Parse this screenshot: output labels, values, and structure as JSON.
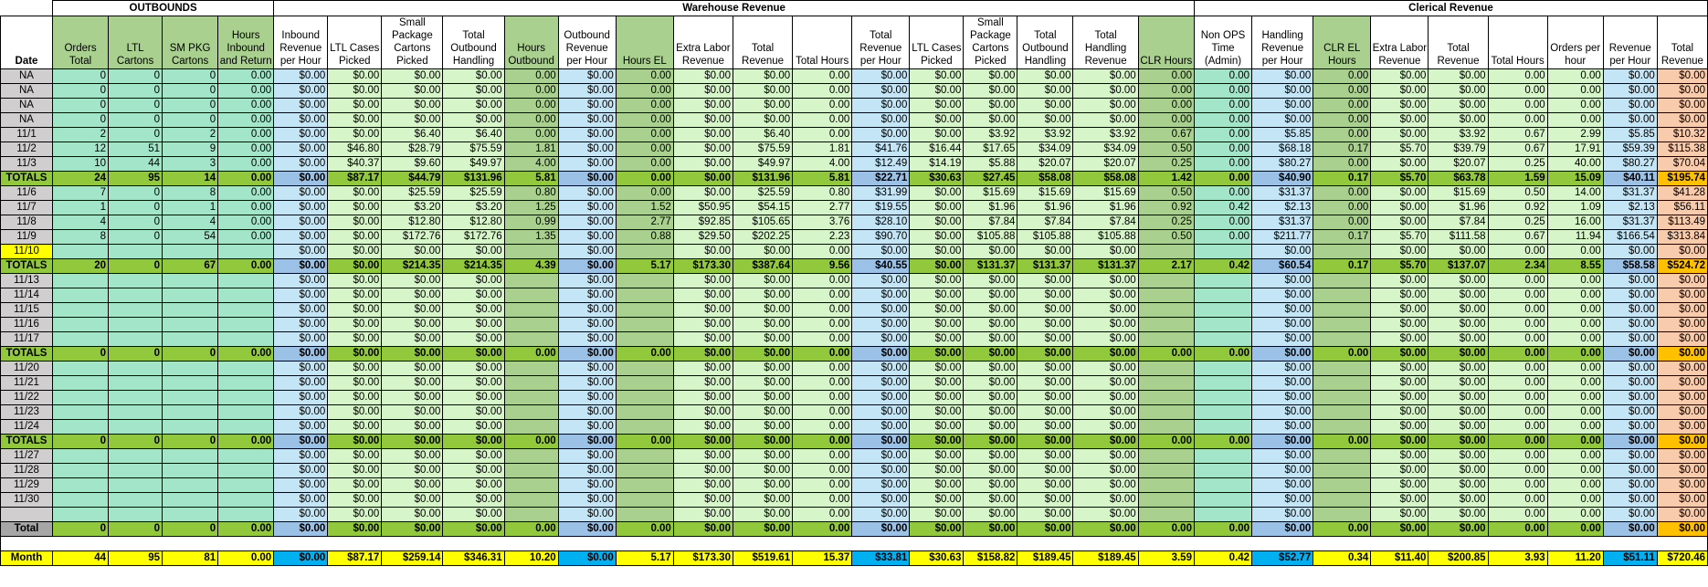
{
  "sections": {
    "outbounds": "OUTBOUNDS",
    "warehouse": "Warehouse Revenue",
    "clerical": "Clerical Revenue"
  },
  "columns": [
    "Date",
    "Orders Total",
    "LTL Cartons",
    "SM PKG Cartons",
    "Hours Inbound and Return",
    "Inbound Revenue per Hour",
    "LTL Cases Picked",
    "Small Package Cartons Picked",
    "Total Outbound Handling",
    "Hours Outbound",
    "Outbound Revenue per Hour",
    "Hours EL",
    "Extra Labor Revenue",
    "Total Revenue",
    "Total Hours",
    "Total Revenue per Hour",
    "LTL Cases Picked",
    "Small Package Cartons Picked",
    "Total Outbound Handling",
    "Total Handling Revenue",
    "CLR Hours",
    "Non OPS Time (Admin)",
    "Handling Revenue per Hour",
    "CLR EL Hours",
    "Extra Labor Revenue",
    "Total Revenue",
    "Total Hours",
    "Orders per hour",
    "Revenue per Hour",
    "Total Revenue"
  ],
  "rows": [
    {
      "type": "data",
      "cells": [
        "NA",
        "0",
        "0",
        "0",
        "0.00",
        "$0.00",
        "$0.00",
        "$0.00",
        "$0.00",
        "0.00",
        "$0.00",
        "0.00",
        "$0.00",
        "$0.00",
        "0.00",
        "$0.00",
        "$0.00",
        "$0.00",
        "$0.00",
        "$0.00",
        "0.00",
        "0.00",
        "$0.00",
        "0.00",
        "$0.00",
        "$0.00",
        "0.00",
        "0.00",
        "$0.00",
        "$0.00"
      ]
    },
    {
      "type": "data",
      "cells": [
        "NA",
        "0",
        "0",
        "0",
        "0.00",
        "$0.00",
        "$0.00",
        "$0.00",
        "$0.00",
        "0.00",
        "$0.00",
        "0.00",
        "$0.00",
        "$0.00",
        "0.00",
        "$0.00",
        "$0.00",
        "$0.00",
        "$0.00",
        "$0.00",
        "0.00",
        "0.00",
        "$0.00",
        "0.00",
        "$0.00",
        "$0.00",
        "0.00",
        "0.00",
        "$0.00",
        "$0.00"
      ]
    },
    {
      "type": "data",
      "cells": [
        "NA",
        "0",
        "0",
        "0",
        "0.00",
        "$0.00",
        "$0.00",
        "$0.00",
        "$0.00",
        "0.00",
        "$0.00",
        "0.00",
        "$0.00",
        "$0.00",
        "0.00",
        "$0.00",
        "$0.00",
        "$0.00",
        "$0.00",
        "$0.00",
        "0.00",
        "0.00",
        "$0.00",
        "0.00",
        "$0.00",
        "$0.00",
        "0.00",
        "0.00",
        "$0.00",
        "$0.00"
      ]
    },
    {
      "type": "data",
      "cells": [
        "NA",
        "0",
        "0",
        "0",
        "0.00",
        "$0.00",
        "$0.00",
        "$0.00",
        "$0.00",
        "0.00",
        "$0.00",
        "0.00",
        "$0.00",
        "$0.00",
        "0.00",
        "$0.00",
        "$0.00",
        "$0.00",
        "$0.00",
        "$0.00",
        "0.00",
        "0.00",
        "$0.00",
        "0.00",
        "$0.00",
        "$0.00",
        "0.00",
        "0.00",
        "$0.00",
        "$0.00"
      ]
    },
    {
      "type": "data",
      "cells": [
        "11/1",
        "2",
        "0",
        "2",
        "0.00",
        "$0.00",
        "$0.00",
        "$6.40",
        "$6.40",
        "0.00",
        "$0.00",
        "0.00",
        "$0.00",
        "$6.40",
        "0.00",
        "$0.00",
        "$0.00",
        "$3.92",
        "$3.92",
        "$3.92",
        "0.67",
        "0.00",
        "$5.85",
        "0.00",
        "$0.00",
        "$3.92",
        "0.67",
        "2.99",
        "$5.85",
        "$10.32"
      ]
    },
    {
      "type": "data",
      "cells": [
        "11/2",
        "12",
        "51",
        "9",
        "0.00",
        "$0.00",
        "$46.80",
        "$28.79",
        "$75.59",
        "1.81",
        "$0.00",
        "0.00",
        "$0.00",
        "$75.59",
        "1.81",
        "$41.76",
        "$16.44",
        "$17.65",
        "$34.09",
        "$34.09",
        "0.50",
        "0.00",
        "$68.18",
        "0.17",
        "$5.70",
        "$39.79",
        "0.67",
        "17.91",
        "$59.39",
        "$115.38"
      ]
    },
    {
      "type": "data",
      "cells": [
        "11/3",
        "10",
        "44",
        "3",
        "0.00",
        "$0.00",
        "$40.37",
        "$9.60",
        "$49.97",
        "4.00",
        "$0.00",
        "0.00",
        "$0.00",
        "$49.97",
        "4.00",
        "$12.49",
        "$14.19",
        "$5.88",
        "$20.07",
        "$20.07",
        "0.25",
        "0.00",
        "$80.27",
        "0.00",
        "$0.00",
        "$20.07",
        "0.25",
        "40.00",
        "$80.27",
        "$70.04"
      ]
    },
    {
      "type": "totals",
      "cells": [
        "TOTALS",
        "24",
        "95",
        "14",
        "0.00",
        "$0.00",
        "$87.17",
        "$44.79",
        "$131.96",
        "5.81",
        "$0.00",
        "0.00",
        "$0.00",
        "$131.96",
        "5.81",
        "$22.71",
        "$30.63",
        "$27.45",
        "$58.08",
        "$58.08",
        "1.42",
        "0.00",
        "$40.90",
        "0.17",
        "$5.70",
        "$63.78",
        "1.59",
        "15.09",
        "$40.11",
        "$195.74"
      ]
    },
    {
      "type": "data",
      "cells": [
        "11/6",
        "7",
        "0",
        "8",
        "0.00",
        "$0.00",
        "$0.00",
        "$25.59",
        "$25.59",
        "0.80",
        "$0.00",
        "0.00",
        "$0.00",
        "$25.59",
        "0.80",
        "$31.99",
        "$0.00",
        "$15.69",
        "$15.69",
        "$15.69",
        "0.50",
        "0.00",
        "$31.37",
        "0.00",
        "$0.00",
        "$15.69",
        "0.50",
        "14.00",
        "$31.37",
        "$41.28"
      ]
    },
    {
      "type": "data",
      "cells": [
        "11/7",
        "1",
        "0",
        "1",
        "0.00",
        "$0.00",
        "$0.00",
        "$3.20",
        "$3.20",
        "1.25",
        "$0.00",
        "1.52",
        "$50.95",
        "$54.15",
        "2.77",
        "$19.55",
        "$0.00",
        "$1.96",
        "$1.96",
        "$1.96",
        "0.92",
        "0.42",
        "$2.13",
        "0.00",
        "$0.00",
        "$1.96",
        "0.92",
        "1.09",
        "$2.13",
        "$56.11"
      ]
    },
    {
      "type": "data",
      "cells": [
        "11/8",
        "4",
        "0",
        "4",
        "0.00",
        "$0.00",
        "$0.00",
        "$12.80",
        "$12.80",
        "0.99",
        "$0.00",
        "2.77",
        "$92.85",
        "$105.65",
        "3.76",
        "$28.10",
        "$0.00",
        "$7.84",
        "$7.84",
        "$7.84",
        "0.25",
        "0.00",
        "$31.37",
        "0.00",
        "$0.00",
        "$7.84",
        "0.25",
        "16.00",
        "$31.37",
        "$113.49"
      ]
    },
    {
      "type": "data",
      "cells": [
        "11/9",
        "8",
        "0",
        "54",
        "0.00",
        "$0.00",
        "$0.00",
        "$172.76",
        "$172.76",
        "1.35",
        "$0.00",
        "0.88",
        "$29.50",
        "$202.25",
        "2.23",
        "$90.70",
        "$0.00",
        "$105.88",
        "$105.88",
        "$105.88",
        "0.50",
        "0.00",
        "$211.77",
        "0.17",
        "$5.70",
        "$111.58",
        "0.67",
        "11.94",
        "$166.54",
        "$313.84"
      ]
    },
    {
      "type": "data",
      "hl": true,
      "cells": [
        "11/10",
        "",
        "",
        "",
        "",
        "$0.00",
        "$0.00",
        "$0.00",
        "$0.00",
        "",
        "$0.00",
        "",
        "$0.00",
        "$0.00",
        "0.00",
        "$0.00",
        "$0.00",
        "$0.00",
        "$0.00",
        "$0.00",
        "",
        "",
        "$0.00",
        "",
        "$0.00",
        "$0.00",
        "0.00",
        "0.00",
        "$0.00",
        "$0.00"
      ]
    },
    {
      "type": "totals",
      "cells": [
        "TOTALS",
        "20",
        "0",
        "67",
        "0.00",
        "$0.00",
        "$0.00",
        "$214.35",
        "$214.35",
        "4.39",
        "$0.00",
        "5.17",
        "$173.30",
        "$387.64",
        "9.56",
        "$40.55",
        "$0.00",
        "$131.37",
        "$131.37",
        "$131.37",
        "2.17",
        "0.42",
        "$60.54",
        "0.17",
        "$5.70",
        "$137.07",
        "2.34",
        "8.55",
        "$58.58",
        "$524.72"
      ]
    },
    {
      "type": "data",
      "cells": [
        "11/13",
        "",
        "",
        "",
        "",
        "$0.00",
        "$0.00",
        "$0.00",
        "$0.00",
        "",
        "$0.00",
        "",
        "$0.00",
        "$0.00",
        "0.00",
        "$0.00",
        "$0.00",
        "$0.00",
        "$0.00",
        "$0.00",
        "",
        "",
        "$0.00",
        "",
        "$0.00",
        "$0.00",
        "0.00",
        "0.00",
        "$0.00",
        "$0.00"
      ]
    },
    {
      "type": "data",
      "cells": [
        "11/14",
        "",
        "",
        "",
        "",
        "$0.00",
        "$0.00",
        "$0.00",
        "$0.00",
        "",
        "$0.00",
        "",
        "$0.00",
        "$0.00",
        "0.00",
        "$0.00",
        "$0.00",
        "$0.00",
        "$0.00",
        "$0.00",
        "",
        "",
        "$0.00",
        "",
        "$0.00",
        "$0.00",
        "0.00",
        "0.00",
        "$0.00",
        "$0.00"
      ]
    },
    {
      "type": "data",
      "cells": [
        "11/15",
        "",
        "",
        "",
        "",
        "$0.00",
        "$0.00",
        "$0.00",
        "$0.00",
        "",
        "$0.00",
        "",
        "$0.00",
        "$0.00",
        "0.00",
        "$0.00",
        "$0.00",
        "$0.00",
        "$0.00",
        "$0.00",
        "",
        "",
        "$0.00",
        "",
        "$0.00",
        "$0.00",
        "0.00",
        "0.00",
        "$0.00",
        "$0.00"
      ]
    },
    {
      "type": "data",
      "cells": [
        "11/16",
        "",
        "",
        "",
        "",
        "$0.00",
        "$0.00",
        "$0.00",
        "$0.00",
        "",
        "$0.00",
        "",
        "$0.00",
        "$0.00",
        "0.00",
        "$0.00",
        "$0.00",
        "$0.00",
        "$0.00",
        "$0.00",
        "",
        "",
        "$0.00",
        "",
        "$0.00",
        "$0.00",
        "0.00",
        "0.00",
        "$0.00",
        "$0.00"
      ]
    },
    {
      "type": "data",
      "cells": [
        "11/17",
        "",
        "",
        "",
        "",
        "$0.00",
        "$0.00",
        "$0.00",
        "$0.00",
        "",
        "$0.00",
        "",
        "$0.00",
        "$0.00",
        "0.00",
        "$0.00",
        "$0.00",
        "$0.00",
        "$0.00",
        "$0.00",
        "",
        "",
        "$0.00",
        "",
        "$0.00",
        "$0.00",
        "0.00",
        "0.00",
        "$0.00",
        "$0.00"
      ]
    },
    {
      "type": "totals",
      "cells": [
        "TOTALS",
        "0",
        "0",
        "0",
        "0.00",
        "$0.00",
        "$0.00",
        "$0.00",
        "$0.00",
        "0.00",
        "$0.00",
        "0.00",
        "$0.00",
        "$0.00",
        "0.00",
        "$0.00",
        "$0.00",
        "$0.00",
        "$0.00",
        "$0.00",
        "0.00",
        "0.00",
        "$0.00",
        "0.00",
        "$0.00",
        "$0.00",
        "0.00",
        "0.00",
        "$0.00",
        "$0.00"
      ]
    },
    {
      "type": "data",
      "cells": [
        "11/20",
        "",
        "",
        "",
        "",
        "$0.00",
        "$0.00",
        "$0.00",
        "$0.00",
        "",
        "$0.00",
        "",
        "$0.00",
        "$0.00",
        "0.00",
        "$0.00",
        "$0.00",
        "$0.00",
        "$0.00",
        "$0.00",
        "",
        "",
        "$0.00",
        "",
        "$0.00",
        "$0.00",
        "0.00",
        "0.00",
        "$0.00",
        "$0.00"
      ]
    },
    {
      "type": "data",
      "cells": [
        "11/21",
        "",
        "",
        "",
        "",
        "$0.00",
        "$0.00",
        "$0.00",
        "$0.00",
        "",
        "$0.00",
        "",
        "$0.00",
        "$0.00",
        "0.00",
        "$0.00",
        "$0.00",
        "$0.00",
        "$0.00",
        "$0.00",
        "",
        "",
        "$0.00",
        "",
        "$0.00",
        "$0.00",
        "0.00",
        "0.00",
        "$0.00",
        "$0.00"
      ]
    },
    {
      "type": "data",
      "cells": [
        "11/22",
        "",
        "",
        "",
        "",
        "$0.00",
        "$0.00",
        "$0.00",
        "$0.00",
        "",
        "$0.00",
        "",
        "$0.00",
        "$0.00",
        "0.00",
        "$0.00",
        "$0.00",
        "$0.00",
        "$0.00",
        "$0.00",
        "",
        "",
        "$0.00",
        "",
        "$0.00",
        "$0.00",
        "0.00",
        "0.00",
        "$0.00",
        "$0.00"
      ]
    },
    {
      "type": "data",
      "cells": [
        "11/23",
        "",
        "",
        "",
        "",
        "$0.00",
        "$0.00",
        "$0.00",
        "$0.00",
        "",
        "$0.00",
        "",
        "$0.00",
        "$0.00",
        "0.00",
        "$0.00",
        "$0.00",
        "$0.00",
        "$0.00",
        "$0.00",
        "",
        "",
        "$0.00",
        "",
        "$0.00",
        "$0.00",
        "0.00",
        "0.00",
        "$0.00",
        "$0.00"
      ]
    },
    {
      "type": "data",
      "cells": [
        "11/24",
        "",
        "",
        "",
        "",
        "$0.00",
        "$0.00",
        "$0.00",
        "$0.00",
        "",
        "$0.00",
        "",
        "$0.00",
        "$0.00",
        "0.00",
        "$0.00",
        "$0.00",
        "$0.00",
        "$0.00",
        "$0.00",
        "",
        "",
        "$0.00",
        "",
        "$0.00",
        "$0.00",
        "0.00",
        "0.00",
        "$0.00",
        "$0.00"
      ]
    },
    {
      "type": "totals",
      "cells": [
        "TOTALS",
        "0",
        "0",
        "0",
        "0.00",
        "$0.00",
        "$0.00",
        "$0.00",
        "$0.00",
        "0.00",
        "$0.00",
        "0.00",
        "$0.00",
        "$0.00",
        "0.00",
        "$0.00",
        "$0.00",
        "$0.00",
        "$0.00",
        "$0.00",
        "0.00",
        "0.00",
        "$0.00",
        "0.00",
        "$0.00",
        "$0.00",
        "0.00",
        "0.00",
        "$0.00",
        "$0.00"
      ]
    },
    {
      "type": "data",
      "cells": [
        "11/27",
        "",
        "",
        "",
        "",
        "$0.00",
        "$0.00",
        "$0.00",
        "$0.00",
        "",
        "$0.00",
        "",
        "$0.00",
        "$0.00",
        "0.00",
        "$0.00",
        "$0.00",
        "$0.00",
        "$0.00",
        "$0.00",
        "",
        "",
        "$0.00",
        "",
        "$0.00",
        "$0.00",
        "0.00",
        "0.00",
        "$0.00",
        "$0.00"
      ]
    },
    {
      "type": "data",
      "cells": [
        "11/28",
        "",
        "",
        "",
        "",
        "$0.00",
        "$0.00",
        "$0.00",
        "$0.00",
        "",
        "$0.00",
        "",
        "$0.00",
        "$0.00",
        "0.00",
        "$0.00",
        "$0.00",
        "$0.00",
        "$0.00",
        "$0.00",
        "",
        "",
        "$0.00",
        "",
        "$0.00",
        "$0.00",
        "0.00",
        "0.00",
        "$0.00",
        "$0.00"
      ]
    },
    {
      "type": "data",
      "cells": [
        "11/29",
        "",
        "",
        "",
        "",
        "$0.00",
        "$0.00",
        "$0.00",
        "$0.00",
        "",
        "$0.00",
        "",
        "$0.00",
        "$0.00",
        "0.00",
        "$0.00",
        "$0.00",
        "$0.00",
        "$0.00",
        "$0.00",
        "",
        "",
        "$0.00",
        "",
        "$0.00",
        "$0.00",
        "0.00",
        "0.00",
        "$0.00",
        "$0.00"
      ]
    },
    {
      "type": "data",
      "cells": [
        "11/30",
        "",
        "",
        "",
        "",
        "$0.00",
        "$0.00",
        "$0.00",
        "$0.00",
        "",
        "$0.00",
        "",
        "$0.00",
        "$0.00",
        "0.00",
        "$0.00",
        "$0.00",
        "$0.00",
        "$0.00",
        "$0.00",
        "",
        "",
        "$0.00",
        "",
        "$0.00",
        "$0.00",
        "0.00",
        "0.00",
        "$0.00",
        "$0.00"
      ]
    },
    {
      "type": "data",
      "cells": [
        "",
        "",
        "",
        "",
        "",
        "$0.00",
        "$0.00",
        "$0.00",
        "$0.00",
        "",
        "$0.00",
        "",
        "$0.00",
        "$0.00",
        "0.00",
        "$0.00",
        "$0.00",
        "$0.00",
        "$0.00",
        "$0.00",
        "",
        "",
        "$0.00",
        "",
        "$0.00",
        "$0.00",
        "0.00",
        "0.00",
        "$0.00",
        "$0.00"
      ]
    },
    {
      "type": "total",
      "cells": [
        "Total",
        "0",
        "0",
        "0",
        "0.00",
        "$0.00",
        "$0.00",
        "$0.00",
        "$0.00",
        "0.00",
        "$0.00",
        "0.00",
        "$0.00",
        "$0.00",
        "0.00",
        "$0.00",
        "$0.00",
        "$0.00",
        "$0.00",
        "$0.00",
        "0.00",
        "0.00",
        "$0.00",
        "0.00",
        "$0.00",
        "$0.00",
        "0.00",
        "0.00",
        "$0.00",
        "$0.00"
      ]
    },
    {
      "type": "spacer",
      "cells": []
    },
    {
      "type": "month",
      "cells": [
        "Month",
        "44",
        "95",
        "81",
        "0.00",
        "$0.00",
        "$87.17",
        "$259.14",
        "$346.31",
        "10.20",
        "$0.00",
        "5.17",
        "$173.30",
        "$519.61",
        "15.37",
        "$33.81",
        "$30.63",
        "$158.82",
        "$189.45",
        "$189.45",
        "3.59",
        "0.42",
        "$52.77",
        "0.34",
        "$11.40",
        "$200.85",
        "3.93",
        "11.20",
        "$51.11",
        "$720.46"
      ]
    }
  ]
}
